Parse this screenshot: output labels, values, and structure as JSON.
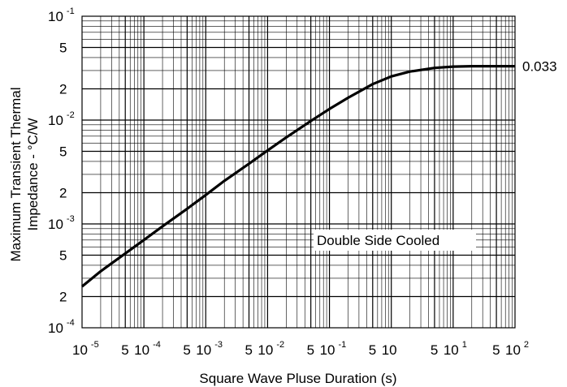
{
  "chart_data": {
    "type": "line",
    "title": "",
    "xlabel": "Square Wave Pluse Duration (s)",
    "ylabel_line1": "Maximum Transient Thermal",
    "ylabel_line2": "Impedance - °C/W",
    "x_scale": "log",
    "y_scale": "log",
    "xlim": [
      1e-05,
      100
    ],
    "ylim": [
      0.0001,
      0.1
    ],
    "grid": true,
    "x_ticks": [
      {
        "value": 1e-05,
        "base": "10",
        "exp": "-5"
      },
      {
        "value": 5e-05,
        "base": "5"
      },
      {
        "value": 0.0001,
        "base": "10",
        "exp": "-4"
      },
      {
        "value": 0.0005,
        "base": "5"
      },
      {
        "value": 0.001,
        "base": "10",
        "exp": "-3"
      },
      {
        "value": 0.005,
        "base": "5"
      },
      {
        "value": 0.01,
        "base": "10",
        "exp": "-2"
      },
      {
        "value": 0.05,
        "base": "5"
      },
      {
        "value": 0.1,
        "base": "10",
        "exp": "-1"
      },
      {
        "value": 0.5,
        "base": "5"
      },
      {
        "value": 1,
        "base": "10"
      },
      {
        "value": 5,
        "base": "5"
      },
      {
        "value": 10,
        "base": "10",
        "exp": "1"
      },
      {
        "value": 50,
        "base": "5"
      },
      {
        "value": 100,
        "base": "10",
        "exp": "2"
      }
    ],
    "y_ticks": [
      {
        "value": 0.1,
        "base": "10",
        "exp": "-1"
      },
      {
        "value": 0.05,
        "base": "5"
      },
      {
        "value": 0.02,
        "base": "2"
      },
      {
        "value": 0.01,
        "base": "10",
        "exp": "-2"
      },
      {
        "value": 0.005,
        "base": "5"
      },
      {
        "value": 0.002,
        "base": "2"
      },
      {
        "value": 0.001,
        "base": "10",
        "exp": "-3"
      },
      {
        "value": 0.0005,
        "base": "5"
      },
      {
        "value": 0.0002,
        "base": "2"
      },
      {
        "value": 0.0001,
        "base": "10",
        "exp": "-4"
      }
    ],
    "series": [
      {
        "x": [
          1e-05,
          2e-05,
          5e-05,
          0.0001,
          0.0002,
          0.0005,
          0.001,
          0.002,
          0.005,
          0.01,
          0.02,
          0.05,
          0.1,
          0.2,
          0.5,
          1,
          2,
          5,
          10,
          20,
          50,
          100
        ],
        "y": [
          0.00025,
          0.00035,
          0.00052,
          0.0007,
          0.00095,
          0.0014,
          0.0019,
          0.0026,
          0.0038,
          0.0051,
          0.0068,
          0.0098,
          0.0128,
          0.0164,
          0.0222,
          0.0263,
          0.0293,
          0.0318,
          0.0327,
          0.033,
          0.033,
          0.033
        ]
      }
    ],
    "annotations": {
      "end_value": "0.033",
      "curve_label": "Double Side Cooled"
    }
  }
}
